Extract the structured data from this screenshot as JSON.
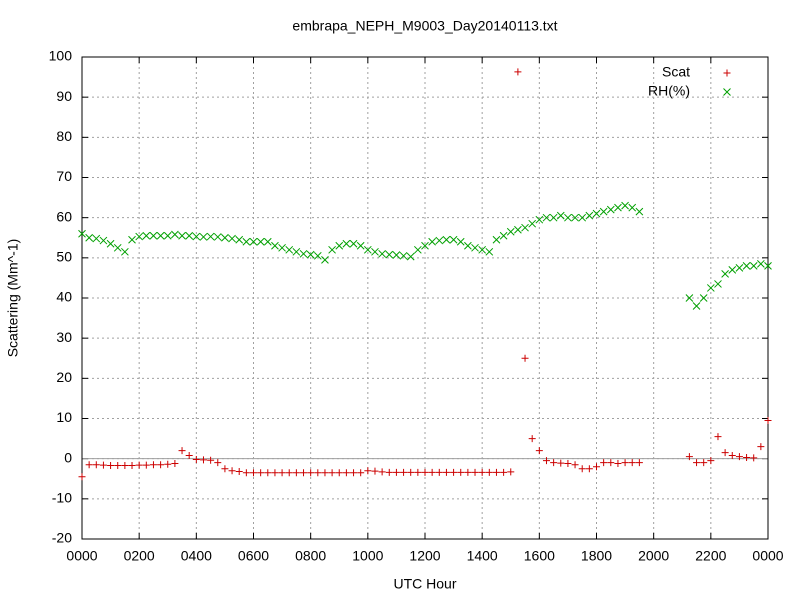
{
  "chart_data": {
    "type": "scatter",
    "title": "embrapa_NEPH_M9003_Day20140113.txt",
    "xlabel": "UTC Hour",
    "ylabel": "Scattering (Mm^-1)",
    "x": [
      0,
      0.25,
      0.5,
      0.75,
      1,
      1.25,
      1.5,
      1.75,
      2,
      2.25,
      2.5,
      2.75,
      3,
      3.25,
      3.5,
      3.75,
      4,
      4.25,
      4.5,
      4.75,
      5,
      5.25,
      5.5,
      5.75,
      6,
      6.25,
      6.5,
      6.75,
      7,
      7.25,
      7.5,
      7.75,
      8,
      8.25,
      8.5,
      8.75,
      9,
      9.25,
      9.5,
      9.75,
      10,
      10.25,
      10.5,
      10.75,
      11,
      11.25,
      11.5,
      11.75,
      12,
      12.25,
      12.5,
      12.75,
      13,
      13.25,
      13.5,
      13.75,
      14,
      14.25,
      14.5,
      14.75,
      15,
      15.25,
      15.5,
      15.75,
      16,
      16.25,
      16.5,
      16.75,
      17,
      17.25,
      17.5,
      17.75,
      18,
      18.25,
      18.5,
      18.75,
      19,
      19.25,
      19.5,
      21.25,
      21.5,
      21.75,
      22,
      22.25,
      22.5,
      22.75,
      23,
      23.25,
      23.5,
      23.75,
      24
    ],
    "series": [
      {
        "name": "Scat",
        "color": "#cc0000",
        "marker": "plus",
        "values": [
          -4.5,
          -1.5,
          -1.5,
          -1.6,
          -1.7,
          -1.7,
          -1.7,
          -1.7,
          -1.6,
          -1.6,
          -1.5,
          -1.5,
          -1.4,
          -1.2,
          2,
          0.8,
          -0.2,
          -0.3,
          -0.4,
          -1,
          -2.5,
          -3,
          -3.2,
          -3.5,
          -3.5,
          -3.5,
          -3.5,
          -3.5,
          -3.5,
          -3.5,
          -3.5,
          -3.5,
          -3.5,
          -3.5,
          -3.5,
          -3.5,
          -3.5,
          -3.5,
          -3.5,
          -3.5,
          -3,
          -3.1,
          -3.3,
          -3.4,
          -3.4,
          -3.4,
          -3.4,
          -3.4,
          -3.4,
          -3.4,
          -3.4,
          -3.4,
          -3.4,
          -3.4,
          -3.4,
          -3.4,
          -3.4,
          -3.4,
          -3.4,
          -3.4,
          -3.3,
          96.3,
          25,
          5,
          2,
          -0.5,
          -1,
          -1.1,
          -1.2,
          -1.5,
          -2.5,
          -2.5,
          -2,
          -1,
          -1,
          -1.2,
          -1,
          -1,
          -1,
          0.5,
          -1,
          -1,
          -0.5,
          5.5,
          1.5,
          0.8,
          0.5,
          0.3,
          0.2,
          3,
          9.5
        ]
      },
      {
        "name": "RH(%)",
        "color": "#00a000",
        "marker": "cross",
        "values": [
          56,
          55,
          54.8,
          54.3,
          53.5,
          52.5,
          51.5,
          54.5,
          55.3,
          55.5,
          55.5,
          55.5,
          55.5,
          55.8,
          55.5,
          55.5,
          55.3,
          55.2,
          55.3,
          55.2,
          55,
          54.8,
          54.5,
          54,
          54,
          54,
          54,
          53,
          52.5,
          52,
          51.5,
          51,
          50.8,
          50.5,
          49.5,
          52,
          53,
          53.5,
          53.5,
          53,
          52,
          51.5,
          51,
          50.8,
          50.7,
          50.5,
          50.3,
          52,
          53,
          54,
          54.3,
          54.5,
          54.5,
          54,
          53,
          52.5,
          52,
          51.5,
          54.5,
          55.5,
          56.5,
          57,
          57.5,
          58.5,
          59.5,
          60,
          60,
          60.5,
          60,
          60,
          60,
          60.5,
          61,
          61.5,
          62,
          62.5,
          63,
          62.5,
          61.5,
          40,
          38,
          40,
          42.5,
          43.5,
          46,
          47,
          47.5,
          48,
          48,
          48.5,
          48
        ]
      }
    ],
    "xlim": [
      0,
      24
    ],
    "xticks": [
      {
        "value": 0,
        "label": "0000"
      },
      {
        "value": 2,
        "label": "0200"
      },
      {
        "value": 4,
        "label": "0400"
      },
      {
        "value": 6,
        "label": "0600"
      },
      {
        "value": 8,
        "label": "0800"
      },
      {
        "value": 10,
        "label": "1000"
      },
      {
        "value": 12,
        "label": "1200"
      },
      {
        "value": 14,
        "label": "1400"
      },
      {
        "value": 16,
        "label": "1600"
      },
      {
        "value": 18,
        "label": "1800"
      },
      {
        "value": 20,
        "label": "2000"
      },
      {
        "value": 22,
        "label": "2200"
      },
      {
        "value": 24,
        "label": "0000"
      }
    ],
    "ylim": [
      -20,
      100
    ],
    "yticks": [
      -20,
      -10,
      0,
      10,
      20,
      30,
      40,
      50,
      60,
      70,
      80,
      90,
      100
    ],
    "grid": true,
    "zeroaxis": true,
    "legend": "top-right"
  }
}
